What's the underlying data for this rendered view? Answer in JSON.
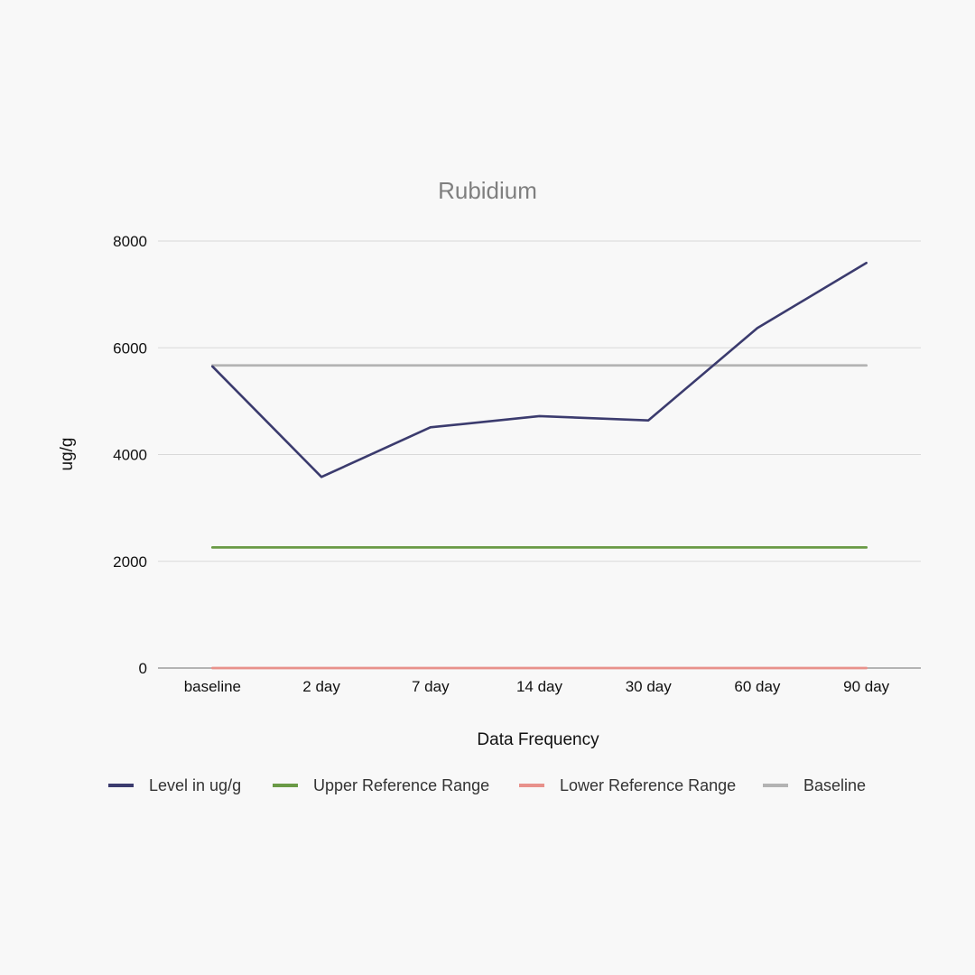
{
  "chart_data": {
    "type": "line",
    "title": "Rubidium",
    "xlabel": "Data Frequency",
    "ylabel": "ug/g",
    "categories": [
      "baseline",
      "2 day",
      "7 day",
      "14 day",
      "30 day",
      "60 day",
      "90 day"
    ],
    "ylim": [
      0,
      8000
    ],
    "yticks": [
      0,
      2000,
      4000,
      6000,
      8000
    ],
    "grid": true,
    "legend_position": "bottom",
    "series": [
      {
        "name": "Level in ug/g",
        "color": "#3b3b6e",
        "values": [
          5650,
          3580,
          4510,
          4720,
          4640,
          6370,
          7590
        ]
      },
      {
        "name": "Upper Reference Range",
        "color": "#6a9a46",
        "values": [
          2260,
          2260,
          2260,
          2260,
          2260,
          2260,
          2260
        ]
      },
      {
        "name": "Lower Reference Range",
        "color": "#e8918b",
        "values": [
          0,
          0,
          0,
          0,
          0,
          0,
          0
        ]
      },
      {
        "name": "Baseline",
        "color": "#b3b3b3",
        "values": [
          5670,
          5670,
          5670,
          5670,
          5670,
          5670,
          5670
        ]
      }
    ]
  }
}
